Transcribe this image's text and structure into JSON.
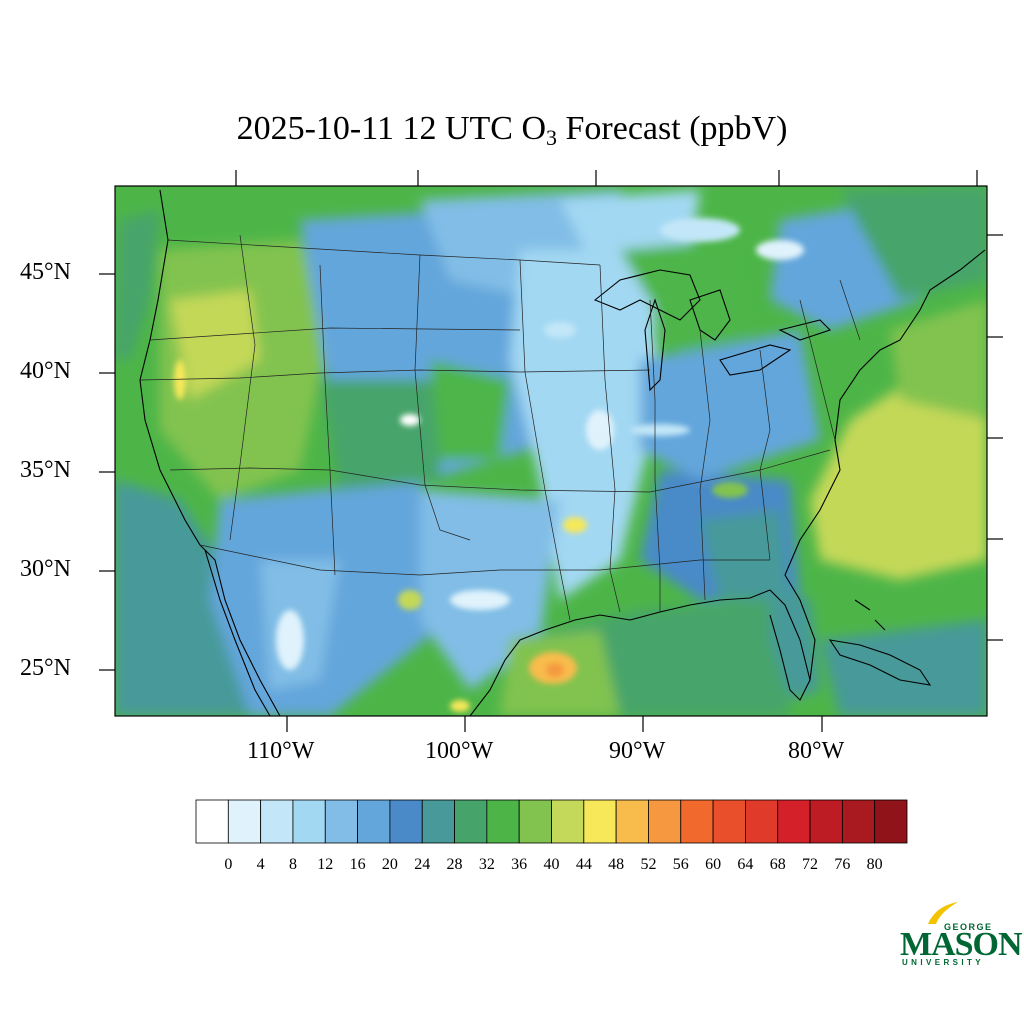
{
  "title": {
    "prefix": "2025-10-11 12 UTC O",
    "subscript": "3",
    "suffix": " Forecast (ppbV)"
  },
  "map": {
    "lat_labels": [
      "45°N",
      "40°N",
      "35°N",
      "30°N",
      "25°N"
    ],
    "lon_labels": [
      "110°W",
      "100°W",
      "90°W",
      "80°W"
    ]
  },
  "colorbar": {
    "labels": [
      "0",
      "4",
      "8",
      "12",
      "16",
      "20",
      "24",
      "28",
      "32",
      "36",
      "40",
      "44",
      "48",
      "52",
      "56",
      "60",
      "64",
      "68",
      "72",
      "76",
      "80"
    ],
    "colors": [
      "#ffffff",
      "#e0f3fc",
      "#c3e7f8",
      "#a3d8f3",
      "#81bde6",
      "#63a6db",
      "#4a8ac8",
      "#479a99",
      "#46a46b",
      "#4db548",
      "#82c34f",
      "#c4d859",
      "#f7e85a",
      "#f8bc4c",
      "#f59840",
      "#f2692e",
      "#ea4f2b",
      "#e03a2a",
      "#d42129",
      "#bd1c25",
      "#a81a1f",
      "#8f1318"
    ]
  },
  "logo": {
    "top": "GEORGE",
    "main": "MASON",
    "bottom": "UNIVERSITY",
    "color": "#006633",
    "accent": "#f4c300"
  }
}
